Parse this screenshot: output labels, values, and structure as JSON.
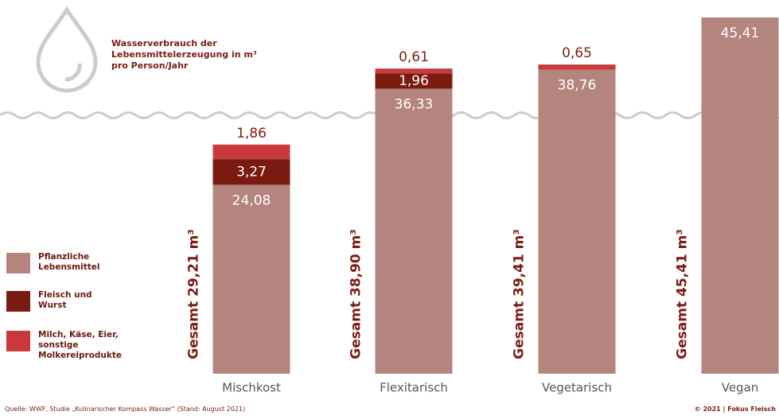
{
  "chart_data": {
    "type": "stacked_bar",
    "title": "Wasserverbrauch der Lebensmittelerzeugung in m³ pro Person/Jahr",
    "categories": [
      "Mischkost",
      "Flexitarisch",
      "Vegetarisch",
      "Vegan"
    ],
    "series": [
      {
        "name": "Pflanzliche Lebensmittel",
        "color": "#b4857f",
        "values": [
          24.08,
          36.33,
          38.76,
          45.41
        ],
        "value_labels": [
          "24,08",
          "36,33",
          "38,76",
          "45,41"
        ]
      },
      {
        "name": "Fleisch und Wurst",
        "color": "#7a1b12",
        "values": [
          3.27,
          1.96,
          null,
          null
        ],
        "value_labels": [
          "3,27",
          "1,96",
          null,
          null
        ]
      },
      {
        "name": "Milch, Käse, Eier, sonstige Molkereiprodukte",
        "color": "#c9393b",
        "values": [
          1.86,
          0.61,
          0.65,
          null
        ],
        "value_labels": [
          "1,86",
          "0,61",
          "0,65",
          null
        ]
      }
    ],
    "annotations": [
      "Gesamt 29,21 m³",
      "Gesamt 38,90 m³",
      "Gesamt 39,41 m³",
      "Gesamt 45,41 m³"
    ],
    "source": "Quelle: WWF, Studie „Kulinarischer Kompass Wasser“ (Stand: August 2021)",
    "copyright": "© 2021 | Fokus Fleisch"
  }
}
